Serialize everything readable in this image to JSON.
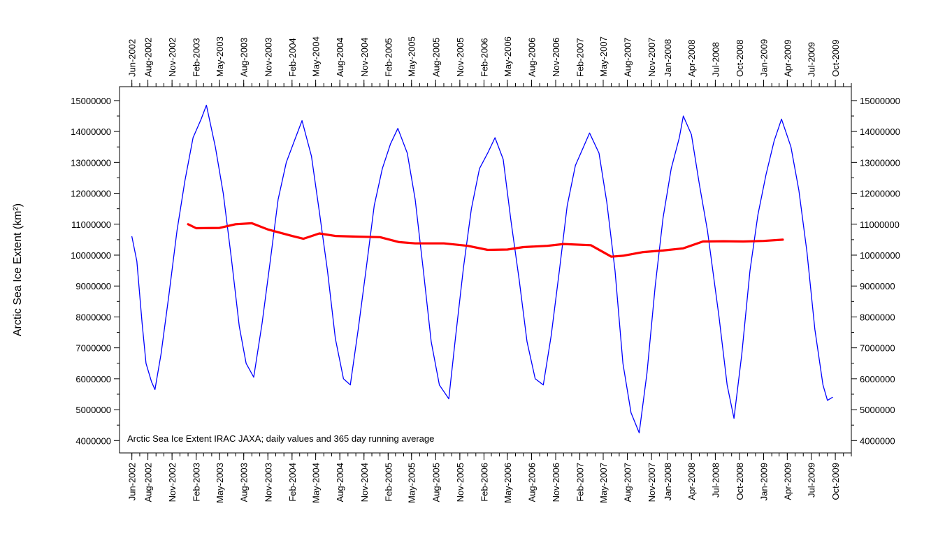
{
  "chart_data": {
    "type": "line",
    "title": "",
    "annotation": "Arctic Sea Ice Extent IRAC JAXA; daily values and 365 day running average",
    "ylabel": "Arctic Sea Ice Extent (km²)",
    "xlabel": "",
    "xlim": [
      "2002-04-15",
      "2009-12-01"
    ],
    "ylim": [
      3600000,
      15450000
    ],
    "y_ticks": [
      4000000,
      5000000,
      6000000,
      7000000,
      8000000,
      9000000,
      10000000,
      11000000,
      12000000,
      13000000,
      14000000,
      15000000
    ],
    "y_tick_labels": [
      "4000000",
      "5000000",
      "6000000",
      "7000000",
      "8000000",
      "9000000",
      "10000000",
      "11000000",
      "12000000",
      "13000000",
      "14000000",
      "15000000"
    ],
    "x_tick_labels": [
      {
        "date": "2002-06-01",
        "label": "Jun-2002"
      },
      {
        "date": "2002-08-01",
        "label": "Aug-2002"
      },
      {
        "date": "2002-11-01",
        "label": "Nov-2002"
      },
      {
        "date": "2003-02-01",
        "label": "Feb-2003"
      },
      {
        "date": "2003-05-01",
        "label": "May-2003"
      },
      {
        "date": "2003-08-01",
        "label": "Aug-2003"
      },
      {
        "date": "2003-11-01",
        "label": "Nov-2003"
      },
      {
        "date": "2004-02-01",
        "label": "Feb-2004"
      },
      {
        "date": "2004-05-01",
        "label": "May-2004"
      },
      {
        "date": "2004-08-01",
        "label": "Aug-2004"
      },
      {
        "date": "2004-11-01",
        "label": "Nov-2004"
      },
      {
        "date": "2005-02-01",
        "label": "Feb-2005"
      },
      {
        "date": "2005-05-01",
        "label": "May-2005"
      },
      {
        "date": "2005-08-01",
        "label": "Aug-2005"
      },
      {
        "date": "2005-11-01",
        "label": "Nov-2005"
      },
      {
        "date": "2006-02-01",
        "label": "Feb-2006"
      },
      {
        "date": "2006-05-01",
        "label": "May-2006"
      },
      {
        "date": "2006-08-01",
        "label": "Aug-2006"
      },
      {
        "date": "2006-11-01",
        "label": "Nov-2006"
      },
      {
        "date": "2007-02-01",
        "label": "Feb-2007"
      },
      {
        "date": "2007-05-01",
        "label": "May-2007"
      },
      {
        "date": "2007-08-01",
        "label": "Aug-2007"
      },
      {
        "date": "2007-11-01",
        "label": "Nov-2007"
      },
      {
        "date": "2008-01-01",
        "label": "Jan-2008"
      },
      {
        "date": "2008-04-01",
        "label": "Apr-2008"
      },
      {
        "date": "2008-07-01",
        "label": "Jul-2008"
      },
      {
        "date": "2008-10-01",
        "label": "Oct-2008"
      },
      {
        "date": "2009-01-01",
        "label": "Jan-2009"
      },
      {
        "date": "2009-04-01",
        "label": "Apr-2009"
      },
      {
        "date": "2009-07-01",
        "label": "Jul-2009"
      },
      {
        "date": "2009-10-01",
        "label": "Oct-2009"
      }
    ],
    "grid": false,
    "legend": "none",
    "series": [
      {
        "color": "#0000ff",
        "points": [
          [
            "2002-06-01",
            10600000
          ],
          [
            "2002-06-20",
            9800000
          ],
          [
            "2002-07-10",
            7800000
          ],
          [
            "2002-07-25",
            6500000
          ],
          [
            "2002-08-15",
            5900000
          ],
          [
            "2002-08-28",
            5650000
          ],
          [
            "2002-09-20",
            6800000
          ],
          [
            "2002-10-20",
            8700000
          ],
          [
            "2002-11-20",
            10800000
          ],
          [
            "2002-12-20",
            12400000
          ],
          [
            "2003-01-20",
            13800000
          ],
          [
            "2003-02-20",
            14400000
          ],
          [
            "2003-03-12",
            14850000
          ],
          [
            "2003-04-15",
            13500000
          ],
          [
            "2003-05-15",
            12000000
          ],
          [
            "2003-06-15",
            9900000
          ],
          [
            "2003-07-15",
            7700000
          ],
          [
            "2003-08-10",
            6500000
          ],
          [
            "2003-09-08",
            6050000
          ],
          [
            "2003-10-10",
            7800000
          ],
          [
            "2003-11-10",
            9800000
          ],
          [
            "2003-12-10",
            11800000
          ],
          [
            "2004-01-10",
            13000000
          ],
          [
            "2004-02-10",
            13700000
          ],
          [
            "2004-03-10",
            14350000
          ],
          [
            "2004-04-15",
            13200000
          ],
          [
            "2004-05-15",
            11400000
          ],
          [
            "2004-06-15",
            9500000
          ],
          [
            "2004-07-15",
            7300000
          ],
          [
            "2004-08-15",
            6000000
          ],
          [
            "2004-09-10",
            5800000
          ],
          [
            "2004-10-10",
            7600000
          ],
          [
            "2004-11-10",
            9600000
          ],
          [
            "2004-12-10",
            11600000
          ],
          [
            "2005-01-10",
            12800000
          ],
          [
            "2005-02-10",
            13600000
          ],
          [
            "2005-03-10",
            14100000
          ],
          [
            "2005-04-15",
            13300000
          ],
          [
            "2005-05-15",
            11800000
          ],
          [
            "2005-06-15",
            9500000
          ],
          [
            "2005-07-15",
            7200000
          ],
          [
            "2005-08-15",
            5800000
          ],
          [
            "2005-09-20",
            5350000
          ],
          [
            "2005-10-15",
            7300000
          ],
          [
            "2005-11-15",
            9600000
          ],
          [
            "2005-12-15",
            11500000
          ],
          [
            "2006-01-15",
            12800000
          ],
          [
            "2006-02-15",
            13300000
          ],
          [
            "2006-03-15",
            13800000
          ],
          [
            "2006-04-15",
            13100000
          ],
          [
            "2006-05-15",
            11100000
          ],
          [
            "2006-06-15",
            9200000
          ],
          [
            "2006-07-15",
            7200000
          ],
          [
            "2006-08-15",
            6000000
          ],
          [
            "2006-09-15",
            5800000
          ],
          [
            "2006-10-15",
            7400000
          ],
          [
            "2006-11-15",
            9500000
          ],
          [
            "2006-12-15",
            11600000
          ],
          [
            "2007-01-15",
            12900000
          ],
          [
            "2007-02-15",
            13500000
          ],
          [
            "2007-03-10",
            13950000
          ],
          [
            "2007-04-15",
            13300000
          ],
          [
            "2007-05-15",
            11700000
          ],
          [
            "2007-06-15",
            9500000
          ],
          [
            "2007-07-15",
            6500000
          ],
          [
            "2007-08-15",
            4900000
          ],
          [
            "2007-09-15",
            4250000
          ],
          [
            "2007-10-15",
            6200000
          ],
          [
            "2007-11-15",
            9000000
          ],
          [
            "2007-12-15",
            11200000
          ],
          [
            "2008-01-15",
            12800000
          ],
          [
            "2008-02-15",
            13800000
          ],
          [
            "2008-03-01",
            14500000
          ],
          [
            "2008-04-01",
            13900000
          ],
          [
            "2008-05-01",
            12300000
          ],
          [
            "2008-06-01",
            10800000
          ],
          [
            "2008-07-15",
            8000000
          ],
          [
            "2008-08-15",
            5800000
          ],
          [
            "2008-09-10",
            4720000
          ],
          [
            "2008-10-10",
            6800000
          ],
          [
            "2008-11-10",
            9500000
          ],
          [
            "2008-12-10",
            11300000
          ],
          [
            "2009-01-10",
            12600000
          ],
          [
            "2009-02-10",
            13700000
          ],
          [
            "2009-03-10",
            14400000
          ],
          [
            "2009-04-15",
            13500000
          ],
          [
            "2009-05-15",
            12100000
          ],
          [
            "2009-06-15",
            10100000
          ],
          [
            "2009-07-15",
            7600000
          ],
          [
            "2009-08-15",
            5800000
          ],
          [
            "2009-09-01",
            5300000
          ],
          [
            "2009-09-20",
            5400000
          ]
        ]
      },
      {
        "color": "#ff0000",
        "points": [
          [
            "2003-01-01",
            11000000
          ],
          [
            "2003-02-01",
            10870000
          ],
          [
            "2003-05-01",
            10880000
          ],
          [
            "2003-07-01",
            11000000
          ],
          [
            "2003-09-01",
            11030000
          ],
          [
            "2003-11-01",
            10830000
          ],
          [
            "2004-02-01",
            10620000
          ],
          [
            "2004-03-15",
            10530000
          ],
          [
            "2004-05-15",
            10700000
          ],
          [
            "2004-07-15",
            10620000
          ],
          [
            "2004-10-01",
            10600000
          ],
          [
            "2005-01-01",
            10580000
          ],
          [
            "2005-03-15",
            10420000
          ],
          [
            "2005-05-15",
            10380000
          ],
          [
            "2005-09-01",
            10380000
          ],
          [
            "2005-12-01",
            10300000
          ],
          [
            "2006-02-15",
            10170000
          ],
          [
            "2006-05-01",
            10180000
          ],
          [
            "2006-07-01",
            10260000
          ],
          [
            "2006-10-01",
            10300000
          ],
          [
            "2006-12-01",
            10360000
          ],
          [
            "2007-03-15",
            10320000
          ],
          [
            "2007-06-01",
            9950000
          ],
          [
            "2007-07-15",
            9980000
          ],
          [
            "2007-10-01",
            10100000
          ],
          [
            "2007-12-15",
            10150000
          ],
          [
            "2008-03-01",
            10220000
          ],
          [
            "2008-05-15",
            10440000
          ],
          [
            "2008-08-01",
            10450000
          ],
          [
            "2008-10-15",
            10440000
          ],
          [
            "2009-01-01",
            10460000
          ],
          [
            "2009-03-15",
            10500000
          ]
        ]
      }
    ]
  }
}
